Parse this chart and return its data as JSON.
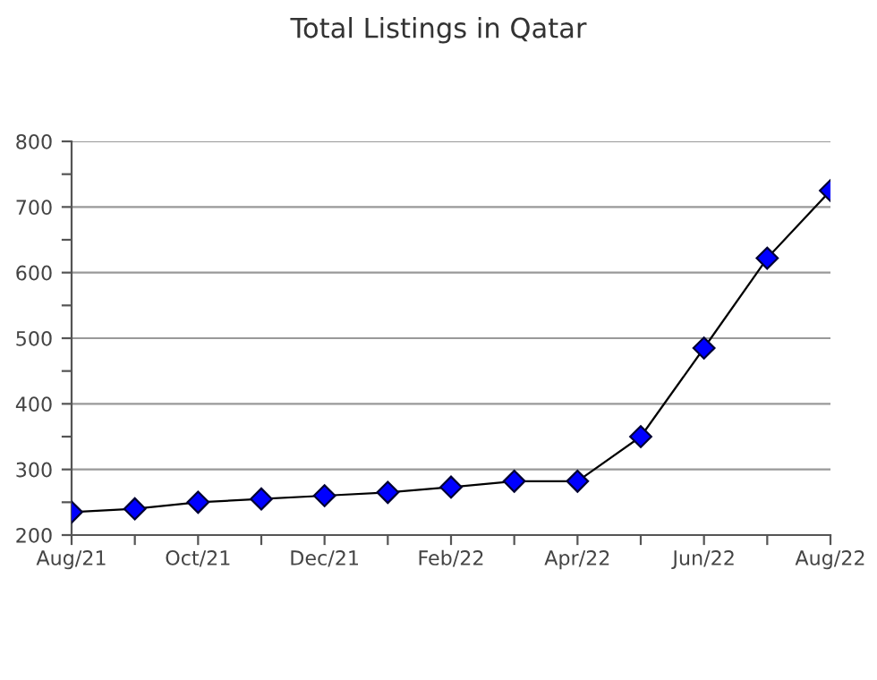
{
  "chart_data": {
    "type": "line",
    "title": "Total Listings in Qatar",
    "categories": [
      "Aug/21",
      null,
      "Oct/21",
      null,
      "Dec/21",
      null,
      "Feb/22",
      null,
      "Apr/22",
      null,
      "Jun/22",
      null,
      "Aug/22"
    ],
    "series": [
      {
        "color": "#0000ff",
        "values": [
          235,
          240,
          250,
          255,
          260,
          265,
          273,
          282,
          282,
          350,
          485,
          622,
          725
        ]
      }
    ],
    "ylim": [
      200,
      800
    ],
    "yticks": [
      200,
      {
        "value": 250,
        "label": null
      },
      300,
      {
        "value": 350,
        "label": null
      },
      400,
      {
        "value": 450,
        "label": null
      },
      500,
      {
        "value": 550,
        "label": null
      },
      600,
      {
        "value": 650,
        "label": null
      },
      700,
      {
        "value": 750,
        "label": null
      },
      800
    ],
    "grid": "y",
    "marker": "diamond",
    "line_style": "solid",
    "legend": false
  }
}
